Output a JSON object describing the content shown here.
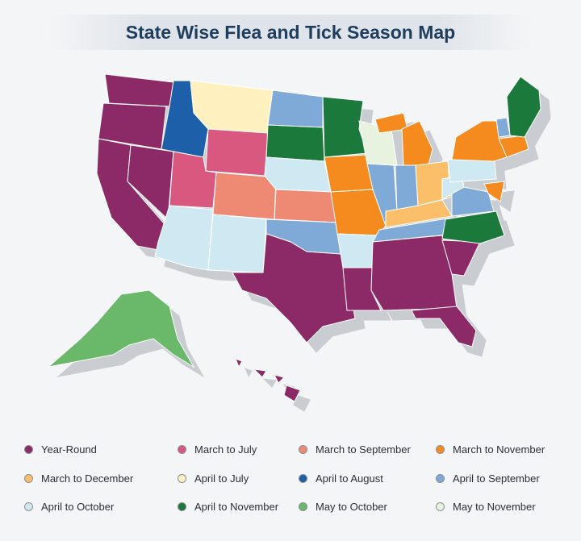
{
  "header": {
    "title": "State Wise Flea and Tick Season Map"
  },
  "legend": {
    "items": [
      {
        "label": "Year-Round",
        "color": "#8b2a67"
      },
      {
        "label": "March to July",
        "color": "#d9587f"
      },
      {
        "label": "March to September",
        "color": "#ee8a74"
      },
      {
        "label": "March to November",
        "color": "#f58a1f"
      },
      {
        "label": "March to December",
        "color": "#fbbf6a"
      },
      {
        "label": "April to July",
        "color": "#fff1bf"
      },
      {
        "label": "April to August",
        "color": "#1d5fa8"
      },
      {
        "label": "April to September",
        "color": "#7fa9d6"
      },
      {
        "label": "April to October",
        "color": "#cfe9f3"
      },
      {
        "label": "April to November",
        "color": "#1b7a3b"
      },
      {
        "label": "May to October",
        "color": "#6ab86a"
      },
      {
        "label": "May to November",
        "color": "#e8f3df"
      }
    ]
  }
}
